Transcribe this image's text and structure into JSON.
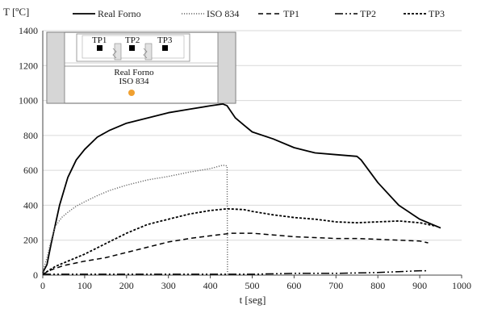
{
  "chart_data": {
    "type": "line",
    "ylabel": "T [ºC]",
    "xlabel": "t [seg]",
    "xlim": [
      0,
      1000
    ],
    "ylim": [
      0,
      1400
    ],
    "xticks": [
      0,
      100,
      200,
      300,
      400,
      500,
      600,
      700,
      800,
      900,
      1000
    ],
    "yticks": [
      0,
      200,
      400,
      600,
      800,
      1000,
      1200,
      1400
    ],
    "grid": "horizontal",
    "legend_position": "top",
    "series": [
      {
        "name": "Real Forno",
        "style": "solid",
        "color": "#000000",
        "x": [
          0,
          10,
          20,
          40,
          60,
          80,
          100,
          130,
          160,
          200,
          250,
          300,
          350,
          400,
          430,
          440,
          460,
          480,
          500,
          550,
          600,
          650,
          700,
          750,
          760,
          800,
          850,
          900,
          950
        ],
        "y": [
          15,
          60,
          180,
          400,
          560,
          660,
          720,
          790,
          830,
          870,
          900,
          930,
          950,
          970,
          980,
          970,
          900,
          860,
          820,
          780,
          730,
          700,
          690,
          680,
          660,
          530,
          400,
          320,
          270
        ]
      },
      {
        "name": "ISO 834",
        "style": "dotted",
        "color": "#555555",
        "x": [
          0,
          10,
          20,
          30,
          45,
          60,
          80,
          100,
          130,
          160,
          200,
          250,
          300,
          350,
          400,
          430,
          440,
          441
        ],
        "y": [
          20,
          100,
          200,
          280,
          330,
          360,
          395,
          420,
          455,
          485,
          515,
          545,
          565,
          590,
          610,
          630,
          625,
          5
        ]
      },
      {
        "name": "TP1",
        "style": "dashed",
        "color": "#000000",
        "x": [
          0,
          20,
          50,
          80,
          100,
          150,
          200,
          250,
          300,
          350,
          400,
          450,
          500,
          550,
          600,
          650,
          700,
          750,
          800,
          850,
          900,
          920
        ],
        "y": [
          5,
          30,
          55,
          70,
          80,
          100,
          130,
          160,
          190,
          210,
          225,
          240,
          240,
          230,
          220,
          215,
          210,
          210,
          205,
          200,
          195,
          185
        ]
      },
      {
        "name": "TP2",
        "style": "dash-dot-dot",
        "color": "#000000",
        "x": [
          0,
          50,
          100,
          200,
          300,
          400,
          500,
          600,
          700,
          800,
          850,
          900,
          920
        ],
        "y": [
          5,
          5,
          5,
          5,
          5,
          5,
          5,
          10,
          10,
          15,
          20,
          25,
          25
        ]
      },
      {
        "name": "TP3",
        "style": "short-dash",
        "color": "#000000",
        "x": [
          0,
          30,
          60,
          100,
          150,
          200,
          250,
          300,
          350,
          400,
          440,
          480,
          500,
          550,
          600,
          650,
          700,
          750,
          800,
          850,
          900,
          940
        ],
        "y": [
          5,
          50,
          80,
          120,
          180,
          240,
          290,
          320,
          350,
          370,
          380,
          375,
          365,
          345,
          330,
          320,
          305,
          300,
          305,
          310,
          300,
          280
        ]
      }
    ],
    "inset": {
      "labels": [
        "TP1",
        "TP2",
        "TP3"
      ],
      "caption_line1": "Real Forno",
      "caption_line2": "ISO 834"
    }
  }
}
